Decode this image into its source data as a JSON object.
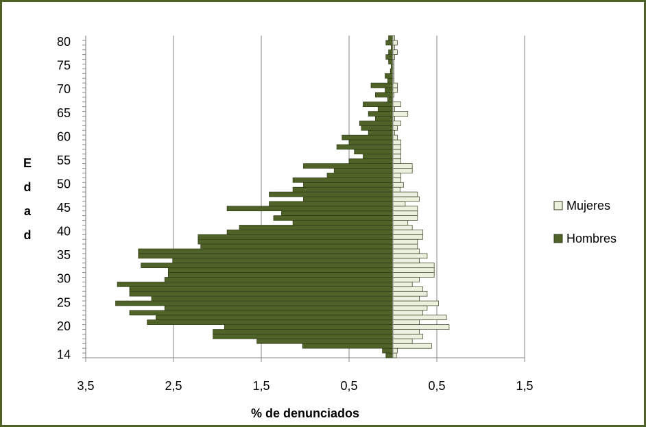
{
  "chart_data": {
    "type": "bar",
    "orientation": "horizontal",
    "stacked": false,
    "x_label": "% de denunciados",
    "y_label": "Edad",
    "categories": [
      14,
      null,
      null,
      null,
      null,
      null,
      20,
      null,
      null,
      null,
      null,
      25,
      null,
      null,
      null,
      null,
      30,
      null,
      null,
      null,
      null,
      35,
      null,
      null,
      null,
      null,
      40,
      null,
      null,
      null,
      null,
      45,
      null,
      null,
      null,
      null,
      50,
      null,
      null,
      null,
      null,
      55,
      null,
      null,
      null,
      null,
      60,
      null,
      null,
      null,
      null,
      65,
      null,
      null,
      null,
      null,
      70,
      null,
      null,
      null,
      null,
      75,
      null,
      null,
      null,
      null,
      80,
      null
    ],
    "series": [
      {
        "name": "Mujeres",
        "color": "#ebf1de",
        "values": [
          0.04,
          0.05,
          0.44,
          0.22,
          0.34,
          0.3,
          0.64,
          0.3,
          0.61,
          0.34,
          0.39,
          0.52,
          0.3,
          0.39,
          0.34,
          0.22,
          0.3,
          0.47,
          0.47,
          0.47,
          0.3,
          0.39,
          0.3,
          0.28,
          0.28,
          0.34,
          0.34,
          0.22,
          0.17,
          0.28,
          0.28,
          0.28,
          0.14,
          0.3,
          0.28,
          0.08,
          0.12,
          0.09,
          0.09,
          0.22,
          0.22,
          0.09,
          0.09,
          0.09,
          0.09,
          0.09,
          0.05,
          0.02,
          0.05,
          0.09,
          0.02,
          0.17,
          0.02,
          0.09,
          0,
          0.01,
          0.05,
          0.05,
          0.01,
          0.01,
          0.01,
          0.01,
          0.01,
          0.02,
          0.05,
          0.02,
          0.05,
          0.02
        ]
      },
      {
        "name": "Hombres",
        "color": "#4f6228",
        "values": [
          -0.08,
          -0.12,
          -1.03,
          -1.55,
          -2.05,
          -2.05,
          -1.92,
          -2.8,
          -2.7,
          -3.0,
          -2.6,
          -3.16,
          -2.75,
          -3.0,
          -3.0,
          -3.14,
          -2.6,
          -2.56,
          -2.56,
          -2.87,
          -2.51,
          -2.9,
          -2.9,
          -2.19,
          -2.22,
          -2.22,
          -1.89,
          -1.75,
          -1.14,
          -1.36,
          -1.27,
          -1.89,
          -1.41,
          -1.02,
          -1.41,
          -1.14,
          -1.02,
          -1.14,
          -0.75,
          -0.67,
          -1.02,
          -0.5,
          -0.34,
          -0.44,
          -0.64,
          -0.5,
          -0.58,
          -0.28,
          -0.36,
          -0.38,
          -0.2,
          -0.28,
          -0.17,
          -0.34,
          -0.06,
          -0.2,
          -0.09,
          -0.25,
          -0.06,
          -0.09,
          -0.03,
          -0.02,
          -0.05,
          -0.08,
          -0.05,
          -0.02,
          -0.08,
          -0.05
        ]
      }
    ],
    "xlim": [
      -3.5,
      1.5
    ],
    "xticks": [
      {
        "value": -3.5,
        "label": "3,5"
      },
      {
        "value": -2.5,
        "label": "2,5"
      },
      {
        "value": -1.5,
        "label": "1,5"
      },
      {
        "value": -0.5,
        "label": "0,5"
      },
      {
        "value": 0.5,
        "label": "0,5"
      },
      {
        "value": 1.5,
        "label": "1,5"
      }
    ],
    "grid": true,
    "legend": "right"
  }
}
